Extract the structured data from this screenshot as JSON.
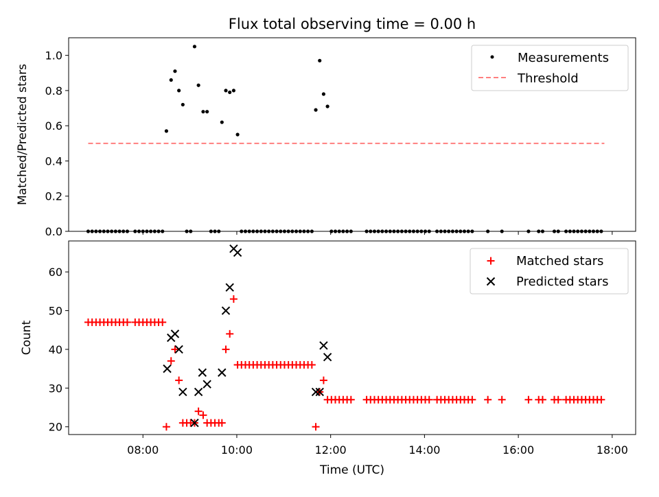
{
  "title": "Flux total observing time = 0.00 h",
  "chart_data": [
    {
      "type": "scatter",
      "ylabel": "Matched/Predicted stars",
      "ylim": [
        0,
        1.1
      ],
      "yticks": [
        "0.0",
        "0.2",
        "0.4",
        "0.6",
        "0.8",
        "1.0"
      ],
      "legend": {
        "placement": "top-right",
        "entries": [
          "Measurements",
          "Threshold"
        ]
      },
      "colors": {
        "measurements": "#000000",
        "threshold": "#ff7f7f"
      },
      "threshold": {
        "value": 0.5,
        "x_range": [
          "06:50",
          "17:50"
        ]
      },
      "series": [
        {
          "name": "Measurements",
          "points": [
            [
              "06:50",
              0
            ],
            [
              "06:55",
              0
            ],
            [
              "07:00",
              0
            ],
            [
              "07:05",
              0
            ],
            [
              "07:10",
              0
            ],
            [
              "07:15",
              0
            ],
            [
              "07:20",
              0
            ],
            [
              "07:25",
              0
            ],
            [
              "07:30",
              0
            ],
            [
              "07:35",
              0
            ],
            [
              "07:40",
              0
            ],
            [
              "07:50",
              0
            ],
            [
              "07:55",
              0
            ],
            [
              "08:00",
              0
            ],
            [
              "08:05",
              0
            ],
            [
              "08:10",
              0
            ],
            [
              "08:15",
              0
            ],
            [
              "08:20",
              0
            ],
            [
              "08:25",
              0
            ],
            [
              "08:30",
              0.57
            ],
            [
              "08:36",
              0.86
            ],
            [
              "08:41",
              0.91
            ],
            [
              "08:46",
              0.8
            ],
            [
              "08:51",
              0.72
            ],
            [
              "08:56",
              0
            ],
            [
              "09:01",
              0
            ],
            [
              "09:06",
              1.05
            ],
            [
              "09:11",
              0.83
            ],
            [
              "09:17",
              0.68
            ],
            [
              "09:22",
              0.68
            ],
            [
              "09:27",
              0
            ],
            [
              "09:32",
              0
            ],
            [
              "09:37",
              0
            ],
            [
              "09:41",
              0.62
            ],
            [
              "09:46",
              0.8
            ],
            [
              "09:51",
              0.79
            ],
            [
              "09:56",
              0.8
            ],
            [
              "10:01",
              0.55
            ],
            [
              "10:06",
              0
            ],
            [
              "10:11",
              0
            ],
            [
              "10:16",
              0
            ],
            [
              "10:21",
              0
            ],
            [
              "10:26",
              0
            ],
            [
              "10:31",
              0
            ],
            [
              "10:36",
              0
            ],
            [
              "10:41",
              0
            ],
            [
              "10:46",
              0
            ],
            [
              "10:51",
              0
            ],
            [
              "10:56",
              0
            ],
            [
              "11:01",
              0
            ],
            [
              "11:06",
              0
            ],
            [
              "11:11",
              0
            ],
            [
              "11:16",
              0
            ],
            [
              "11:21",
              0
            ],
            [
              "11:26",
              0
            ],
            [
              "11:31",
              0
            ],
            [
              "11:36",
              0
            ],
            [
              "11:41",
              0.69
            ],
            [
              "11:46",
              0.97
            ],
            [
              "11:51",
              0.78
            ],
            [
              "11:56",
              0.71
            ],
            [
              "12:01",
              0
            ],
            [
              "12:06",
              0
            ],
            [
              "12:11",
              0
            ],
            [
              "12:16",
              0
            ],
            [
              "12:21",
              0
            ],
            [
              "12:26",
              0
            ],
            [
              "12:46",
              0
            ],
            [
              "12:51",
              0
            ],
            [
              "12:56",
              0
            ],
            [
              "13:01",
              0
            ],
            [
              "13:06",
              0
            ],
            [
              "13:11",
              0
            ],
            [
              "13:16",
              0
            ],
            [
              "13:21",
              0
            ],
            [
              "13:26",
              0
            ],
            [
              "13:31",
              0
            ],
            [
              "13:36",
              0
            ],
            [
              "13:41",
              0
            ],
            [
              "13:46",
              0
            ],
            [
              "13:51",
              0
            ],
            [
              "13:56",
              0
            ],
            [
              "14:01",
              0
            ],
            [
              "14:06",
              0
            ],
            [
              "14:16",
              0
            ],
            [
              "14:21",
              0
            ],
            [
              "14:26",
              0
            ],
            [
              "14:31",
              0
            ],
            [
              "14:36",
              0
            ],
            [
              "14:41",
              0
            ],
            [
              "14:46",
              0
            ],
            [
              "14:51",
              0
            ],
            [
              "14:56",
              0
            ],
            [
              "15:01",
              0
            ],
            [
              "15:21",
              0
            ],
            [
              "15:39",
              0
            ],
            [
              "16:13",
              0
            ],
            [
              "16:26",
              0
            ],
            [
              "16:31",
              0
            ],
            [
              "16:46",
              0
            ],
            [
              "16:51",
              0
            ],
            [
              "17:01",
              0
            ],
            [
              "17:06",
              0
            ],
            [
              "17:11",
              0
            ],
            [
              "17:16",
              0
            ],
            [
              "17:21",
              0
            ],
            [
              "17:26",
              0
            ],
            [
              "17:31",
              0
            ],
            [
              "17:36",
              0
            ],
            [
              "17:41",
              0
            ],
            [
              "17:46",
              0
            ]
          ]
        }
      ]
    },
    {
      "type": "scatter",
      "ylabel": "Count",
      "xlabel": "Time (UTC)",
      "ylim": [
        18,
        68
      ],
      "yticks": [
        "20",
        "30",
        "40",
        "50",
        "60"
      ],
      "xlim": [
        "06:25",
        "18:30"
      ],
      "xticks": [
        "08:00",
        "10:00",
        "12:00",
        "14:00",
        "16:00",
        "18:00"
      ],
      "legend": {
        "placement": "top-right",
        "entries": [
          "Matched stars",
          "Predicted stars"
        ]
      },
      "colors": {
        "matched": "#ff0000",
        "predicted": "#000000"
      },
      "series": [
        {
          "name": "Matched stars",
          "points": [
            [
              "06:50",
              47
            ],
            [
              "06:55",
              47
            ],
            [
              "07:00",
              47
            ],
            [
              "07:05",
              47
            ],
            [
              "07:10",
              47
            ],
            [
              "07:15",
              47
            ],
            [
              "07:20",
              47
            ],
            [
              "07:25",
              47
            ],
            [
              "07:30",
              47
            ],
            [
              "07:35",
              47
            ],
            [
              "07:40",
              47
            ],
            [
              "07:50",
              47
            ],
            [
              "07:55",
              47
            ],
            [
              "08:00",
              47
            ],
            [
              "08:05",
              47
            ],
            [
              "08:10",
              47
            ],
            [
              "08:15",
              47
            ],
            [
              "08:20",
              47
            ],
            [
              "08:25",
              47
            ],
            [
              "08:30",
              20
            ],
            [
              "08:36",
              37
            ],
            [
              "08:41",
              40
            ],
            [
              "08:46",
              32
            ],
            [
              "08:51",
              21
            ],
            [
              "08:56",
              21
            ],
            [
              "09:01",
              21
            ],
            [
              "09:06",
              21
            ],
            [
              "09:11",
              24
            ],
            [
              "09:17",
              23
            ],
            [
              "09:22",
              21
            ],
            [
              "09:27",
              21
            ],
            [
              "09:32",
              21
            ],
            [
              "09:37",
              21
            ],
            [
              "09:41",
              21
            ],
            [
              "09:46",
              40
            ],
            [
              "09:51",
              44
            ],
            [
              "09:56",
              53
            ],
            [
              "10:01",
              36
            ],
            [
              "10:06",
              36
            ],
            [
              "10:11",
              36
            ],
            [
              "10:16",
              36
            ],
            [
              "10:21",
              36
            ],
            [
              "10:26",
              36
            ],
            [
              "10:31",
              36
            ],
            [
              "10:36",
              36
            ],
            [
              "10:41",
              36
            ],
            [
              "10:46",
              36
            ],
            [
              "10:51",
              36
            ],
            [
              "10:56",
              36
            ],
            [
              "11:01",
              36
            ],
            [
              "11:06",
              36
            ],
            [
              "11:11",
              36
            ],
            [
              "11:16",
              36
            ],
            [
              "11:21",
              36
            ],
            [
              "11:26",
              36
            ],
            [
              "11:31",
              36
            ],
            [
              "11:36",
              36
            ],
            [
              "11:41",
              20
            ],
            [
              "11:46",
              29
            ],
            [
              "11:51",
              32
            ],
            [
              "11:56",
              27
            ],
            [
              "12:01",
              27
            ],
            [
              "12:06",
              27
            ],
            [
              "12:11",
              27
            ],
            [
              "12:16",
              27
            ],
            [
              "12:21",
              27
            ],
            [
              "12:26",
              27
            ],
            [
              "12:46",
              27
            ],
            [
              "12:51",
              27
            ],
            [
              "12:56",
              27
            ],
            [
              "13:01",
              27
            ],
            [
              "13:06",
              27
            ],
            [
              "13:11",
              27
            ],
            [
              "13:16",
              27
            ],
            [
              "13:21",
              27
            ],
            [
              "13:26",
              27
            ],
            [
              "13:31",
              27
            ],
            [
              "13:36",
              27
            ],
            [
              "13:41",
              27
            ],
            [
              "13:46",
              27
            ],
            [
              "13:51",
              27
            ],
            [
              "13:56",
              27
            ],
            [
              "14:01",
              27
            ],
            [
              "14:06",
              27
            ],
            [
              "14:16",
              27
            ],
            [
              "14:21",
              27
            ],
            [
              "14:26",
              27
            ],
            [
              "14:31",
              27
            ],
            [
              "14:36",
              27
            ],
            [
              "14:41",
              27
            ],
            [
              "14:46",
              27
            ],
            [
              "14:51",
              27
            ],
            [
              "14:56",
              27
            ],
            [
              "15:01",
              27
            ],
            [
              "15:21",
              27
            ],
            [
              "15:39",
              27
            ],
            [
              "16:13",
              27
            ],
            [
              "16:26",
              27
            ],
            [
              "16:31",
              27
            ],
            [
              "16:46",
              27
            ],
            [
              "16:51",
              27
            ],
            [
              "17:01",
              27
            ],
            [
              "17:06",
              27
            ],
            [
              "17:11",
              27
            ],
            [
              "17:16",
              27
            ],
            [
              "17:21",
              27
            ],
            [
              "17:26",
              27
            ],
            [
              "17:31",
              27
            ],
            [
              "17:36",
              27
            ],
            [
              "17:41",
              27
            ],
            [
              "17:46",
              27
            ]
          ]
        },
        {
          "name": "Predicted stars",
          "points": [
            [
              "08:31",
              35
            ],
            [
              "08:36",
              43
            ],
            [
              "08:41",
              44
            ],
            [
              "08:46",
              40
            ],
            [
              "08:51",
              29
            ],
            [
              "09:06",
              21
            ],
            [
              "09:11",
              29
            ],
            [
              "09:16",
              34
            ],
            [
              "09:22",
              31
            ],
            [
              "09:41",
              34
            ],
            [
              "09:46",
              50
            ],
            [
              "09:51",
              56
            ],
            [
              "09:56",
              66
            ],
            [
              "10:01",
              65
            ],
            [
              "11:41",
              29
            ],
            [
              "11:46",
              29
            ],
            [
              "11:51",
              41
            ],
            [
              "11:56",
              38
            ]
          ]
        }
      ]
    }
  ]
}
